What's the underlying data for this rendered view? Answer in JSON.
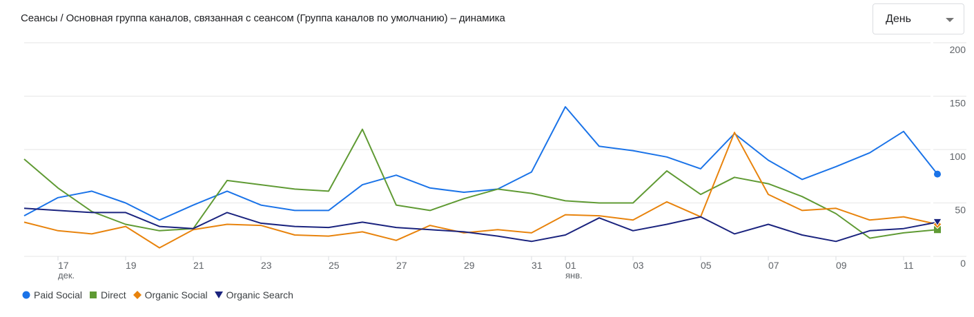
{
  "title": "Сеансы / Основная группа каналов, связанная с сеансом (Группа каналов по умолчанию) – динамика",
  "granularity_dropdown": {
    "selected": "День"
  },
  "chart_data": {
    "type": "line",
    "title": "Сеансы / Основная группа каналов, связанная с сеансом (Группа каналов по умолчанию) – динамика",
    "xlabel": "",
    "ylabel": "",
    "ylim": [
      0,
      200
    ],
    "yticks": [
      0,
      50,
      100,
      150,
      200
    ],
    "y_axis_position": "right",
    "grid": true,
    "legend_position": "bottom-left",
    "x": [
      "16 дек.",
      "17 дек.",
      "18 дек.",
      "19 дек.",
      "20 дек.",
      "21 дек.",
      "22 дек.",
      "23 дек.",
      "24 дек.",
      "25 дек.",
      "26 дек.",
      "27 дек.",
      "28 дек.",
      "29 дек.",
      "30 дек.",
      "31 дек.",
      "01 янв.",
      "02 янв.",
      "03 янв.",
      "04 янв.",
      "05 янв.",
      "06 янв.",
      "07 янв.",
      "08 янв.",
      "09 янв.",
      "10 янв.",
      "11 янв.",
      "12 янв."
    ],
    "xtick_labels": [
      {
        "index": 1,
        "label": "17",
        "sub": "дек."
      },
      {
        "index": 3,
        "label": "19",
        "sub": ""
      },
      {
        "index": 5,
        "label": "21",
        "sub": ""
      },
      {
        "index": 7,
        "label": "23",
        "sub": ""
      },
      {
        "index": 9,
        "label": "25",
        "sub": ""
      },
      {
        "index": 11,
        "label": "27",
        "sub": ""
      },
      {
        "index": 13,
        "label": "29",
        "sub": ""
      },
      {
        "index": 15,
        "label": "31",
        "sub": ""
      },
      {
        "index": 16,
        "label": "01",
        "sub": "янв."
      },
      {
        "index": 18,
        "label": "03",
        "sub": ""
      },
      {
        "index": 20,
        "label": "05",
        "sub": ""
      },
      {
        "index": 22,
        "label": "07",
        "sub": ""
      },
      {
        "index": 24,
        "label": "09",
        "sub": ""
      },
      {
        "index": 26,
        "label": "11",
        "sub": ""
      }
    ],
    "series": [
      {
        "name": "Paid Social",
        "color": "#1a73e8",
        "marker": "circle",
        "values": [
          38,
          55,
          61,
          50,
          34,
          48,
          61,
          48,
          43,
          43,
          67,
          76,
          64,
          60,
          63,
          79,
          140,
          103,
          99,
          93,
          82,
          115,
          90,
          72,
          84,
          97,
          117,
          77
        ]
      },
      {
        "name": "Direct",
        "color": "#5f9a33",
        "marker": "square",
        "values": [
          91,
          64,
          42,
          30,
          24,
          26,
          71,
          67,
          63,
          61,
          119,
          48,
          43,
          54,
          63,
          59,
          52,
          50,
          50,
          80,
          58,
          74,
          68,
          56,
          40,
          17,
          22,
          25
        ]
      },
      {
        "name": "Organic Social",
        "color": "#e8830c",
        "marker": "diamond",
        "values": [
          32,
          24,
          21,
          28,
          8,
          25,
          30,
          29,
          20,
          19,
          23,
          15,
          29,
          22,
          25,
          22,
          39,
          38,
          34,
          51,
          37,
          116,
          58,
          43,
          45,
          34,
          37,
          30
        ]
      },
      {
        "name": "Organic Search",
        "color": "#1a237e",
        "marker": "triangle-down",
        "values": [
          45,
          43,
          41,
          41,
          28,
          26,
          41,
          31,
          28,
          27,
          32,
          27,
          25,
          23,
          19,
          14,
          20,
          36,
          24,
          30,
          37,
          21,
          30,
          20,
          14,
          24,
          26,
          32
        ]
      }
    ]
  },
  "legend": [
    {
      "label": "Paid Social",
      "icon": "circle-icon",
      "color": "#1a73e8"
    },
    {
      "label": "Direct",
      "icon": "square-icon",
      "color": "#5f9a33"
    },
    {
      "label": "Organic Social",
      "icon": "diamond-icon",
      "color": "#e8830c"
    },
    {
      "label": "Organic Search",
      "icon": "triangle-down-icon",
      "color": "#1a237e"
    }
  ]
}
